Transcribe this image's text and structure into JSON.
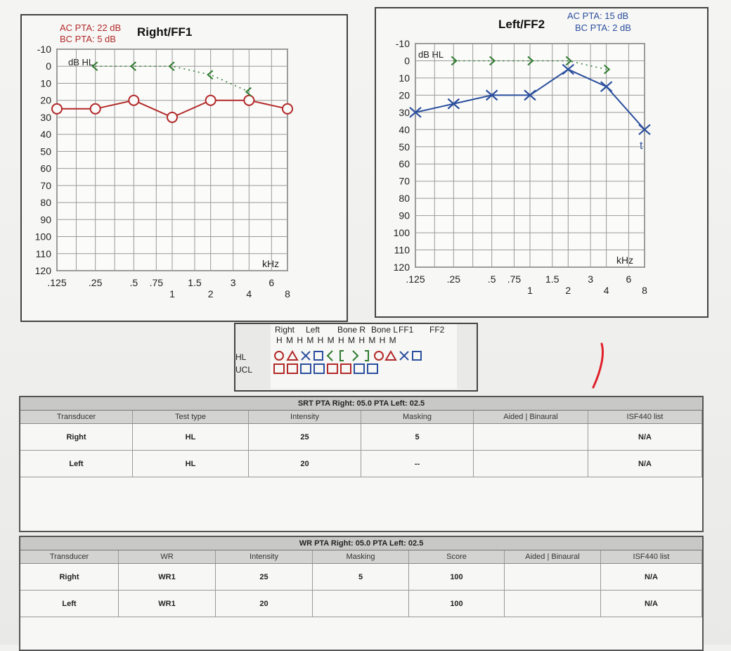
{
  "right_audiogram": {
    "title": "Right/FF1",
    "ac_pta": "AC PTA: 22 dB",
    "bc_pta": "BC PTA: 5 dB",
    "unit_label": "dB HL",
    "khz_label": "kHz",
    "y_ticks": [
      "-10",
      "0",
      "10",
      "20",
      "30",
      "40",
      "50",
      "60",
      "70",
      "80",
      "90",
      "100",
      "110",
      "120"
    ],
    "x_ticks_top": [
      ".125",
      ".25",
      ".5",
      ".75",
      "1.5",
      "3",
      "6"
    ],
    "x_ticks_bottom": [
      "1",
      "2",
      "4",
      "8"
    ]
  },
  "left_audiogram": {
    "title": "Left/FF2",
    "ac_pta": "AC PTA: 15 dB",
    "bc_pta": "BC PTA: 2 dB",
    "unit_label": "dB HL",
    "khz_label": "kHz",
    "y_ticks": [
      "-10",
      "0",
      "10",
      "20",
      "30",
      "40",
      "50",
      "60",
      "70",
      "80",
      "90",
      "100",
      "110",
      "120"
    ],
    "x_ticks_top": [
      ".125",
      ".25",
      ".5",
      ".75",
      "1.5",
      "3",
      "6"
    ],
    "x_ticks_bottom": [
      "1",
      "2",
      "4",
      "8"
    ],
    "extra_mark": "t"
  },
  "chart_data": [
    {
      "type": "line",
      "title": "Right/FF1",
      "xlabel": "kHz",
      "ylabel": "dB HL",
      "x": [
        0.125,
        0.25,
        0.5,
        1,
        2,
        3,
        4,
        6,
        8
      ],
      "ylim": [
        120,
        -10
      ],
      "series": [
        {
          "marker": "circle",
          "color": "#b22a2a",
          "x": [
            0.125,
            0.25,
            0.5,
            1,
            2,
            4,
            8
          ],
          "values": [
            25,
            25,
            20,
            30,
            20,
            20,
            25
          ]
        },
        {
          "marker": "bone-right",
          "color": "#2e7a2e",
          "x": [
            0.25,
            0.5,
            1,
            2,
            4
          ],
          "values": [
            0,
            0,
            0,
            5,
            15
          ]
        }
      ]
    },
    {
      "type": "line",
      "title": "Left/FF2",
      "xlabel": "kHz",
      "ylabel": "dB HL",
      "x": [
        0.125,
        0.25,
        0.5,
        1,
        2,
        3,
        4,
        6,
        8
      ],
      "ylim": [
        120,
        -10
      ],
      "series": [
        {
          "marker": "x",
          "color": "#2b4f9e",
          "x": [
            0.125,
            0.25,
            0.5,
            1,
            2,
            4,
            8
          ],
          "values": [
            30,
            25,
            20,
            20,
            5,
            15,
            40
          ]
        },
        {
          "marker": "bone-left",
          "color": "#2e7a2e",
          "x": [
            0.25,
            0.5,
            1,
            2,
            4
          ],
          "values": [
            0,
            0,
            0,
            0,
            5
          ]
        }
      ]
    }
  ],
  "legend": {
    "headers": [
      "Right",
      "Left",
      "Bone R",
      "Bone L",
      "FF1",
      "FF2"
    ],
    "sub": "H  M  H  M  H  M  H  M  H  M  H  M",
    "row_hl": "HL",
    "row_ucl": "UCL"
  },
  "srt_table": {
    "title": "SRT   PTA Right: 05.0  PTA Left: 02.5",
    "columns": [
      "Transducer",
      "Test type",
      "Intensity",
      "Masking",
      "Aided | Binaural",
      "ISF440 list"
    ],
    "rows": [
      [
        "Right",
        "HL",
        "25",
        "5",
        "",
        "N/A"
      ],
      [
        "Left",
        "HL",
        "20",
        "--",
        "",
        "N/A"
      ]
    ]
  },
  "wr_table": {
    "title": "WR   PTA Right: 05.0  PTA Left: 02.5",
    "columns": [
      "Transducer",
      "WR",
      "Intensity",
      "Masking",
      "Score",
      "Aided | Binaural",
      "ISF440 list"
    ],
    "rows": [
      [
        "Right",
        "WR1",
        "25",
        "5",
        "100",
        "",
        "N/A"
      ],
      [
        "Left",
        "WR1",
        "20",
        "",
        "100",
        "",
        "N/A"
      ]
    ]
  },
  "colors": {
    "right": "#b22a2a",
    "left": "#2b4f9e",
    "bone": "#2e7a2e",
    "annotation": "#e0202a"
  }
}
